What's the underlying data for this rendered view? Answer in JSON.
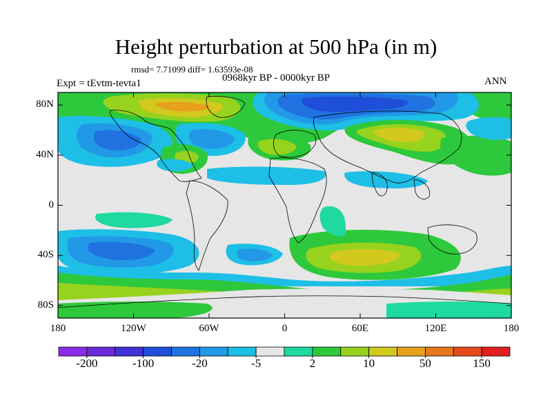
{
  "figure": {
    "title": "Height perturbation at 500 hPa (in m)",
    "rmsd_line": "rmsd= 7.71099 diff= 1.63593e-08",
    "period": "0968kyr BP - 0000kyr BP",
    "experiment": "Expt = tEvtm-tevta1",
    "season": "ANN"
  },
  "map": {
    "projection": "cylindrical equidistant",
    "lon_range": [
      -180,
      180
    ],
    "lat_range": [
      -90,
      90
    ],
    "y_ticks": [
      "80N",
      "40N",
      "0",
      "40S",
      "80S"
    ],
    "y_tick_values": [
      80,
      40,
      0,
      -40,
      -80
    ],
    "x_ticks": [
      "180",
      "120W",
      "60W",
      "0",
      "60E",
      "120E",
      "180"
    ],
    "x_tick_values": [
      -180,
      -120,
      -60,
      0,
      60,
      120,
      180
    ]
  },
  "colorbar": {
    "colors": [
      "#8c2be6",
      "#6a2cd9",
      "#4032d6",
      "#1f4fd9",
      "#1f72e0",
      "#2299e6",
      "#1ebfe6",
      "#e6e6e6",
      "#1ed9a0",
      "#2ec83c",
      "#97d21e",
      "#d2c81e",
      "#e6a01e",
      "#e6781e",
      "#e64b1e",
      "#e01e1e"
    ],
    "labels": [
      "-200",
      "-100",
      "-20",
      "-5",
      "2",
      "10",
      "50",
      "150"
    ]
  },
  "colors": {
    "neutral": "#e6e6e6",
    "coastline": "#000000"
  }
}
